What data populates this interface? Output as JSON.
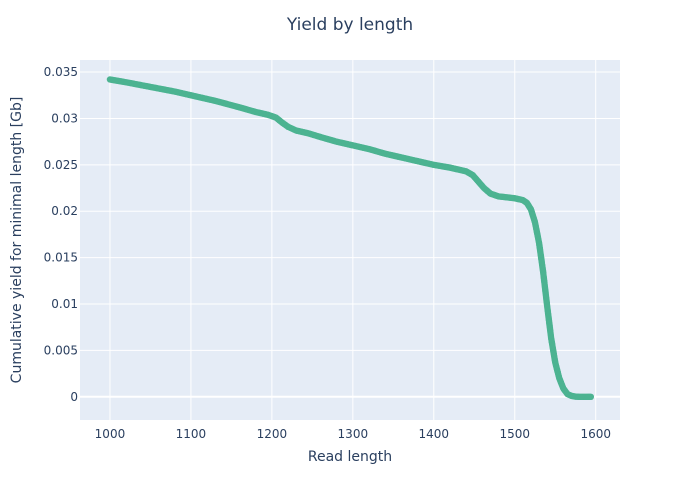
{
  "chart_data": {
    "type": "scatter",
    "title": "Yield by length",
    "xlabel": "Read length",
    "ylabel": "Cumulative yield for minimal length [Gb]",
    "xlim": [
      963,
      1630
    ],
    "ylim": [
      -0.0025,
      0.0363
    ],
    "xticks": [
      1000,
      1100,
      1200,
      1300,
      1400,
      1500,
      1600
    ],
    "xtick_labels": [
      "1000",
      "1100",
      "1200",
      "1300",
      "1400",
      "1500",
      "1600"
    ],
    "yticks": [
      0,
      0.005,
      0.01,
      0.015,
      0.02,
      0.025,
      0.03,
      0.035
    ],
    "ytick_labels": [
      "0",
      "0.005",
      "0.01",
      "0.015",
      "0.02",
      "0.025",
      "0.03",
      "0.035"
    ],
    "grid": true,
    "series": [
      {
        "color": "#4cb391",
        "x": [
          1000,
          1020,
          1050,
          1080,
          1100,
          1130,
          1160,
          1180,
          1195,
          1205,
          1212,
          1220,
          1230,
          1245,
          1260,
          1280,
          1300,
          1320,
          1340,
          1360,
          1380,
          1400,
          1420,
          1440,
          1448,
          1455,
          1462,
          1470,
          1480,
          1490,
          1500,
          1510,
          1515,
          1520,
          1525,
          1530,
          1535,
          1540,
          1545,
          1550,
          1555,
          1560,
          1565,
          1570,
          1575,
          1580,
          1585,
          1590,
          1594
        ],
        "y": [
          0.0342,
          0.0339,
          0.0334,
          0.0329,
          0.0325,
          0.0319,
          0.0312,
          0.0307,
          0.0304,
          0.0301,
          0.0296,
          0.0291,
          0.0287,
          0.0284,
          0.028,
          0.0275,
          0.0271,
          0.0267,
          0.0262,
          0.0258,
          0.0254,
          0.025,
          0.0247,
          0.0243,
          0.0239,
          0.0232,
          0.0225,
          0.0219,
          0.0216,
          0.0215,
          0.0214,
          0.0212,
          0.0209,
          0.0202,
          0.0188,
          0.0166,
          0.0135,
          0.0098,
          0.0063,
          0.0037,
          0.002,
          0.0009,
          0.0003,
          0.0001,
          2e-05,
          0,
          0,
          0,
          0
        ]
      }
    ]
  }
}
